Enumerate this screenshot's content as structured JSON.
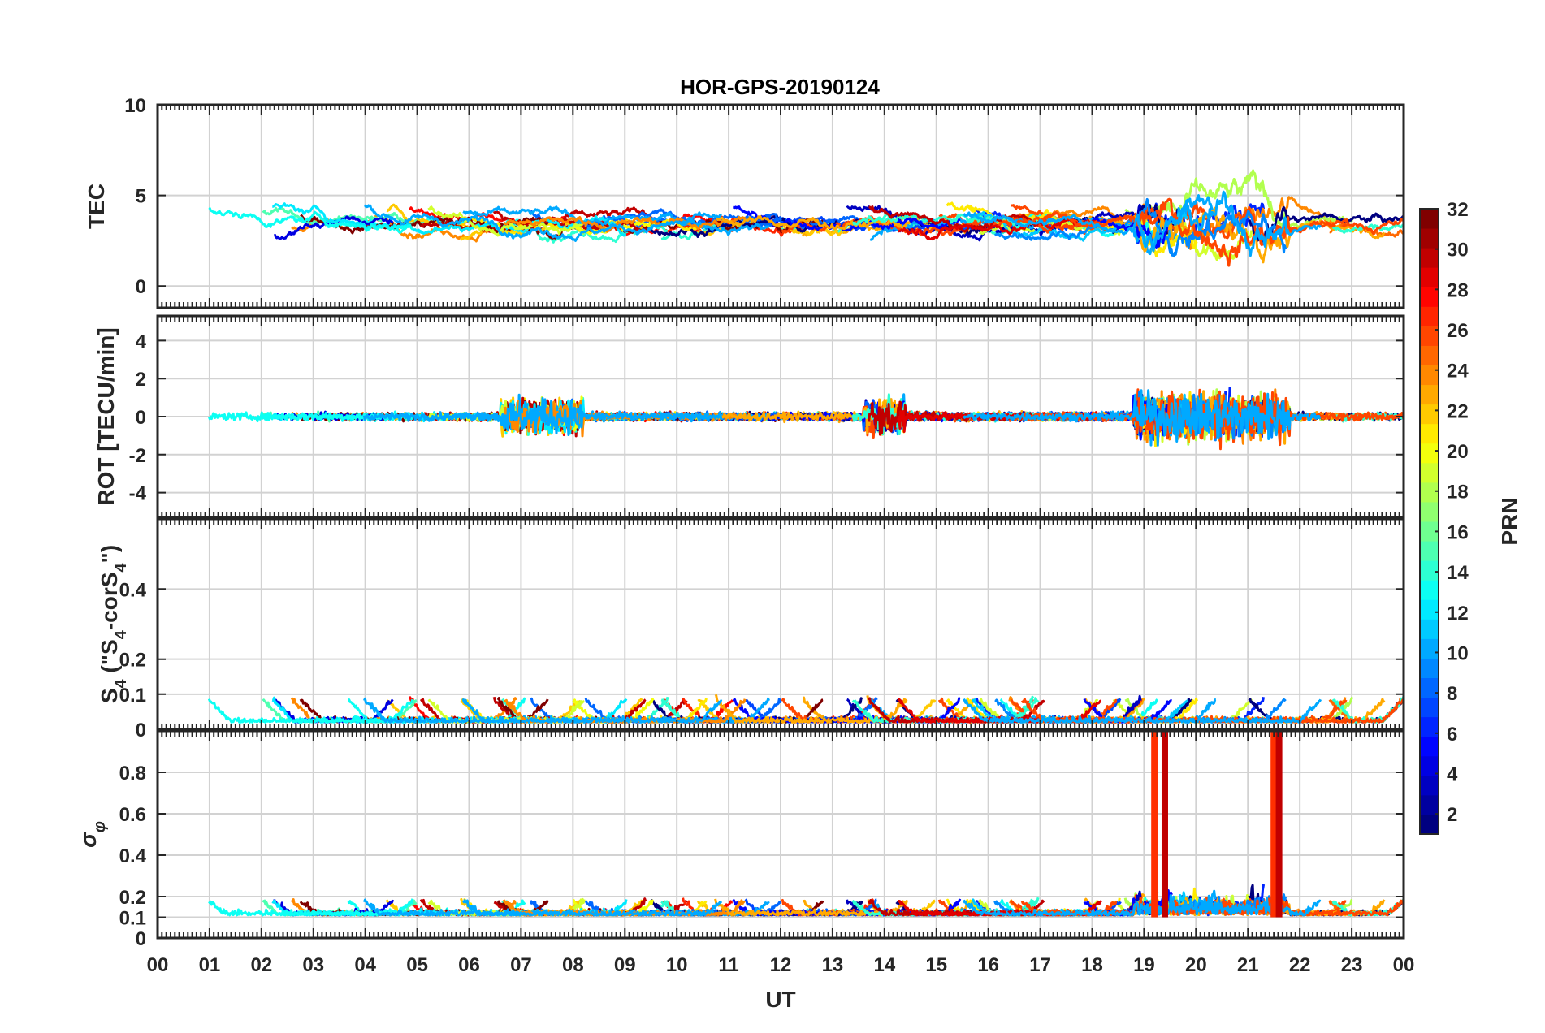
{
  "chart_data": {
    "type": "line",
    "title": "HOR-GPS-20190124",
    "xlabel": "UT",
    "x_tick_labels": [
      "00",
      "01",
      "02",
      "03",
      "04",
      "05",
      "06",
      "07",
      "08",
      "09",
      "10",
      "11",
      "12",
      "13",
      "14",
      "15",
      "16",
      "17",
      "18",
      "19",
      "20",
      "21",
      "22",
      "23",
      "00"
    ],
    "xlim": [
      0,
      24
    ],
    "grid": true,
    "panels": [
      {
        "ylabel": "TEC",
        "ylim": [
          -1.2,
          10
        ],
        "yticks": [
          0,
          5,
          10
        ],
        "ytick_labels": [
          "0",
          "5",
          "10"
        ]
      },
      {
        "ylabel": "ROT [TECU/min]",
        "ylim": [
          -5.3,
          5.3
        ],
        "yticks": [
          -4,
          -2,
          0,
          2,
          4
        ],
        "ytick_labels": [
          "-4",
          "-2",
          "0",
          "2",
          "4"
        ]
      },
      {
        "ylabel": "S4 (\"S4-corS4\")",
        "ylim": [
          0,
          0.6
        ],
        "yticks": [
          0,
          0.1,
          0.2,
          0.4
        ],
        "ytick_labels": [
          "0",
          "0.1",
          "0.2",
          "0.4"
        ]
      },
      {
        "ylabel": "σφ",
        "ylim": [
          0,
          1
        ],
        "yticks": [
          0,
          0.1,
          0.2,
          0.4,
          0.6,
          0.8
        ],
        "ytick_labels": [
          "0",
          "0.1",
          "0.2",
          "0.4",
          "0.6",
          "0.8"
        ]
      }
    ],
    "colorbar": {
      "label": "PRN",
      "range": [
        1,
        32
      ],
      "ticks": [
        2,
        4,
        6,
        8,
        10,
        12,
        14,
        16,
        18,
        20,
        22,
        24,
        26,
        28,
        30,
        32
      ],
      "tick_labels": [
        "2",
        "4",
        "6",
        "8",
        "10",
        "12",
        "14",
        "16",
        "18",
        "20",
        "22",
        "24",
        "26",
        "28",
        "30",
        "32"
      ],
      "colormap": "jet"
    },
    "series_note": "",
    "events": {
      "sigma_phi_spikes_UT": [
        19.2,
        19.4,
        21.5,
        21.6
      ]
    }
  }
}
